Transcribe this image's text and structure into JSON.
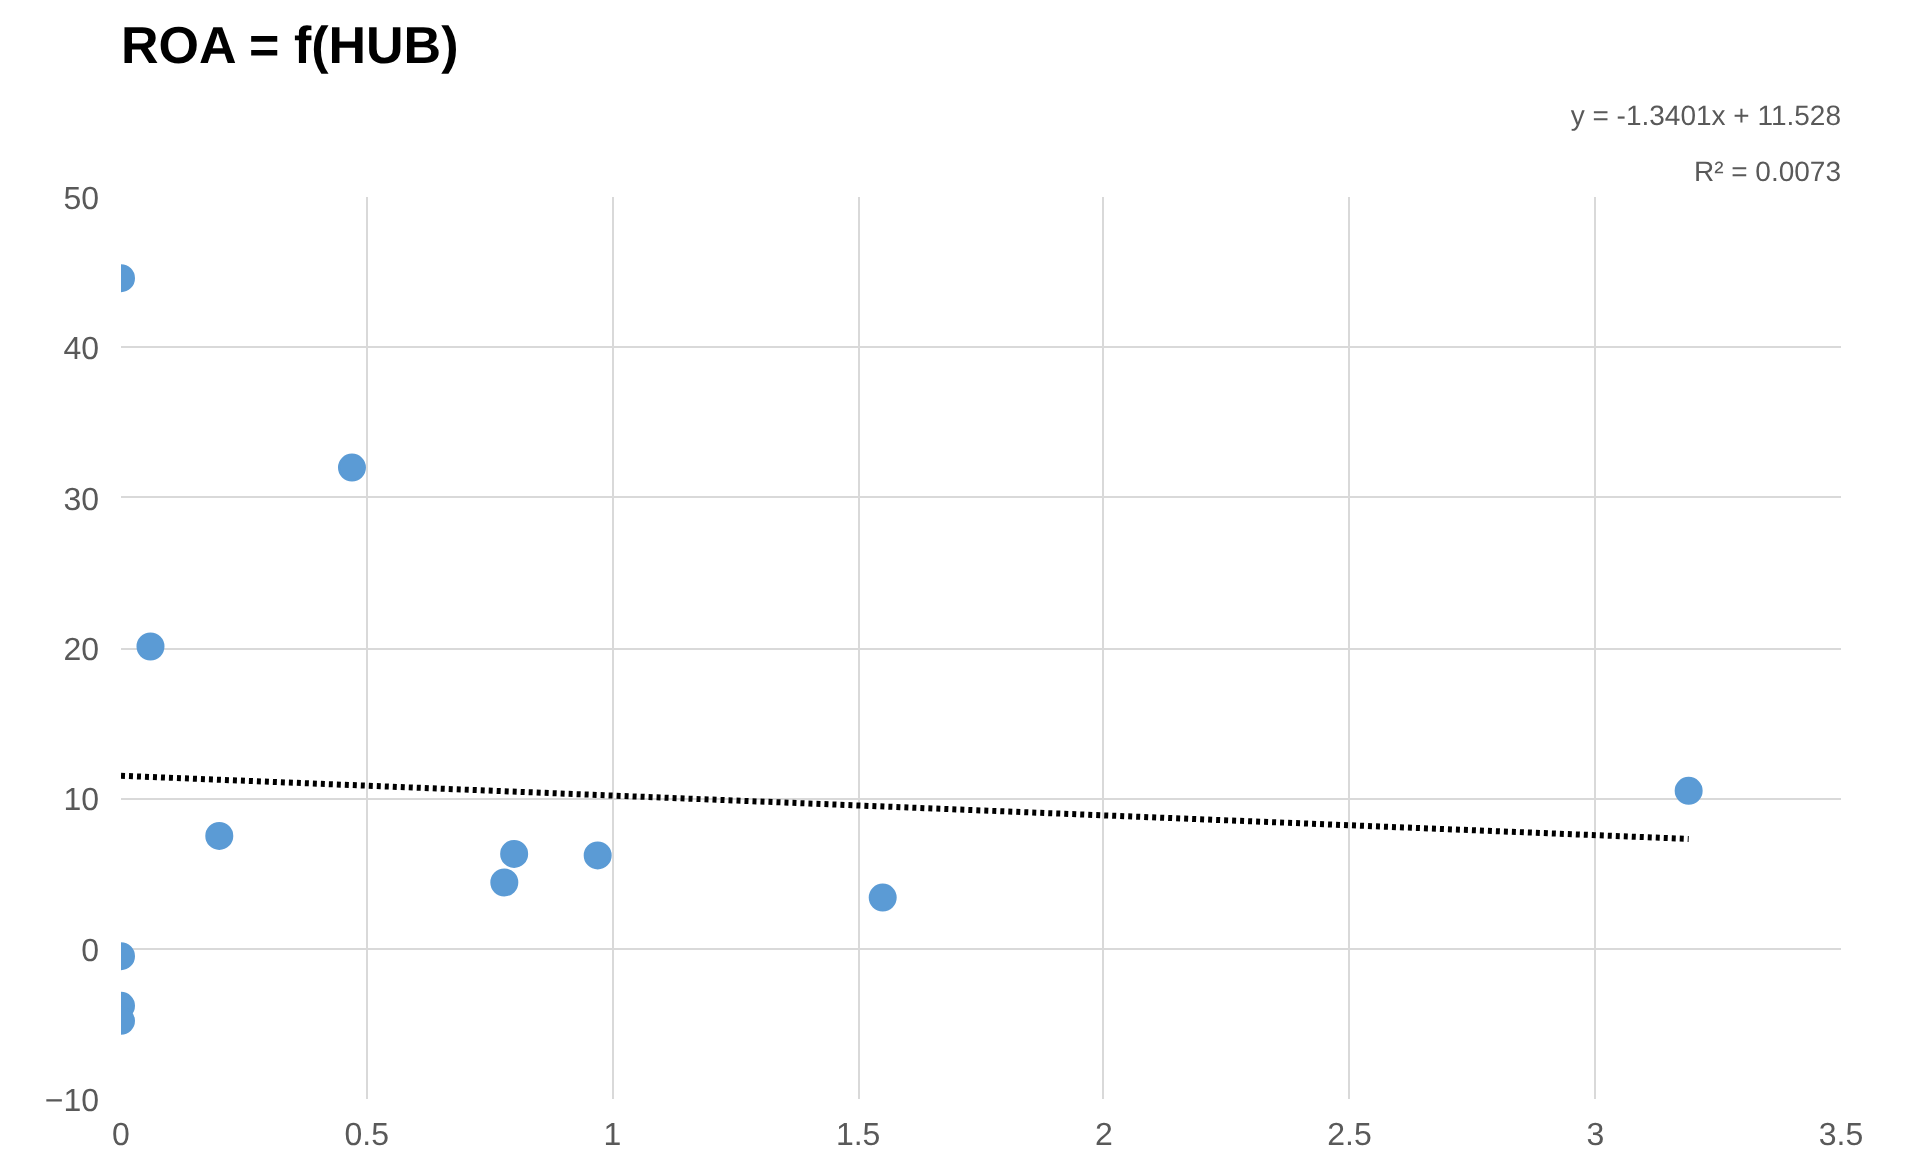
{
  "chart_data": {
    "type": "scatter",
    "title": "ROA = f(HUB)",
    "annotations": [
      "y = -1.3401x + 11.528",
      "R² = 0.0073"
    ],
    "series": [
      {
        "color": "#5b9bd5",
        "marker": "circle",
        "x": [
          0,
          0,
          0,
          0,
          0.06,
          0.2,
          0.47,
          0.78,
          0.8,
          0.97,
          1.55,
          3.19
        ],
        "values": [
          44.6,
          -0.5,
          -3.8,
          -4.8,
          20.1,
          7.5,
          32.0,
          4.4,
          6.3,
          6.2,
          3.4,
          10.5
        ]
      },
      {
        "type": "line",
        "color": "#000000",
        "line_style": "dotted",
        "x": [
          0,
          3.19
        ],
        "values": [
          11.5,
          7.3
        ]
      }
    ],
    "xlim": [
      0,
      3.5
    ],
    "xticks": [
      0,
      0.5,
      1,
      1.5,
      2,
      2.5,
      3,
      3.5
    ],
    "ylim": [
      -10,
      50
    ],
    "yticks": [
      -10,
      0,
      10,
      20,
      30,
      40,
      50
    ],
    "grid": true
  }
}
